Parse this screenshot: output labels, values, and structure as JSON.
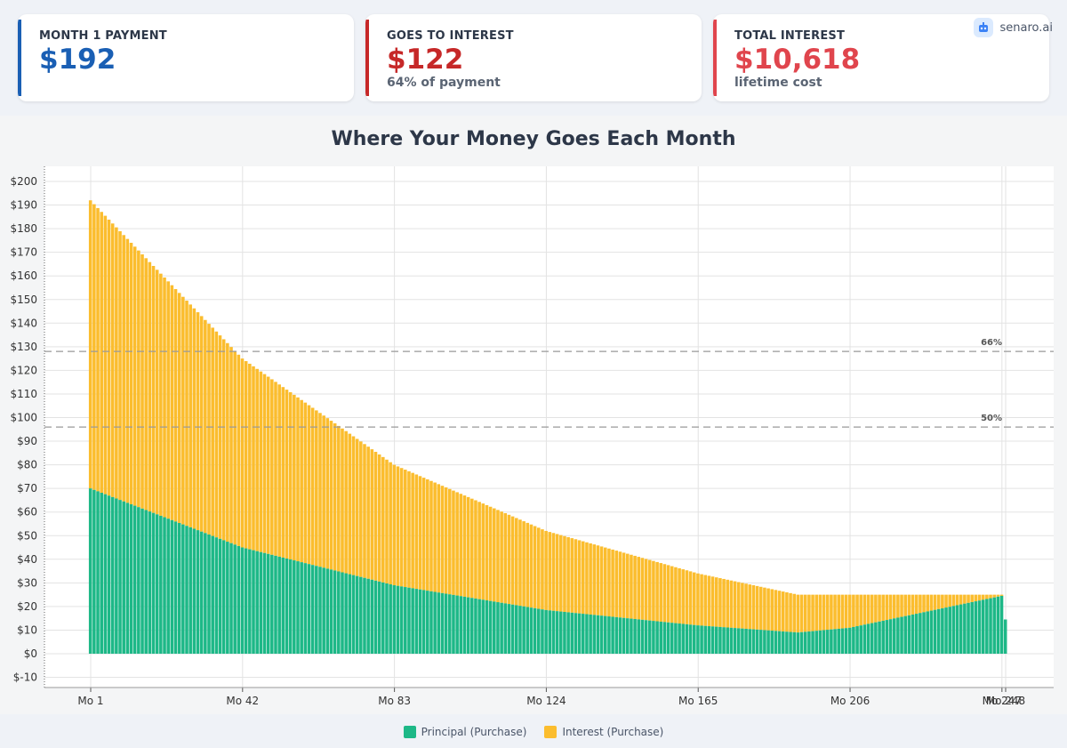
{
  "brand": {
    "name": "senaro.ai",
    "icon": "robot-icon"
  },
  "cards": [
    {
      "label": "MONTH 1 PAYMENT",
      "value": "$192",
      "sub": "",
      "color": "#1a5fb4"
    },
    {
      "label": "GOES TO INTEREST",
      "value": "$122",
      "sub": "64% of payment",
      "color": "#c62828"
    },
    {
      "label": "TOTAL INTEREST",
      "value": "$10,618",
      "sub": "lifetime cost",
      "color": "#e0454d"
    }
  ],
  "chart_data": {
    "type": "bar",
    "stacked": true,
    "title": "Where Your Money Goes Each Month",
    "xlabel": "",
    "ylabel": "",
    "x_tick_labels": [
      "Mo 1",
      "Mo 42",
      "Mo 83",
      "Mo 124",
      "Mo 165",
      "Mo 206",
      "Mo 247",
      "Mo 248"
    ],
    "x_tick_months": [
      1,
      42,
      83,
      124,
      165,
      206,
      247,
      248
    ],
    "months": [
      1,
      248
    ],
    "ylim": [
      -10,
      200
    ],
    "y_ticks": [
      -10,
      0,
      10,
      20,
      30,
      40,
      50,
      60,
      70,
      80,
      90,
      100,
      110,
      120,
      130,
      140,
      150,
      160,
      170,
      180,
      190,
      200
    ],
    "y_prefix": "$",
    "grid": true,
    "legend_position": "bottom",
    "reference_lines": [
      {
        "label": "66%",
        "y": 128
      },
      {
        "label": "50%",
        "y": 96
      }
    ],
    "series": [
      {
        "name": "Principal (Purchase)",
        "color": "#1db887",
        "keypoints": [
          [
            1,
            70
          ],
          [
            42,
            45
          ],
          [
            83,
            29
          ],
          [
            124,
            18.5
          ],
          [
            165,
            12
          ],
          [
            192,
            9
          ],
          [
            206,
            11
          ],
          [
            247,
            24.5
          ],
          [
            248,
            14.5
          ]
        ]
      },
      {
        "name": "Interest (Purchase)",
        "color": "#fbbd2e",
        "keypoints": [
          [
            1,
            122
          ],
          [
            42,
            80
          ],
          [
            83,
            51
          ],
          [
            124,
            33.5
          ],
          [
            165,
            22
          ],
          [
            192,
            16
          ],
          [
            206,
            14
          ],
          [
            247,
            0.5
          ],
          [
            248,
            0
          ]
        ]
      }
    ]
  }
}
